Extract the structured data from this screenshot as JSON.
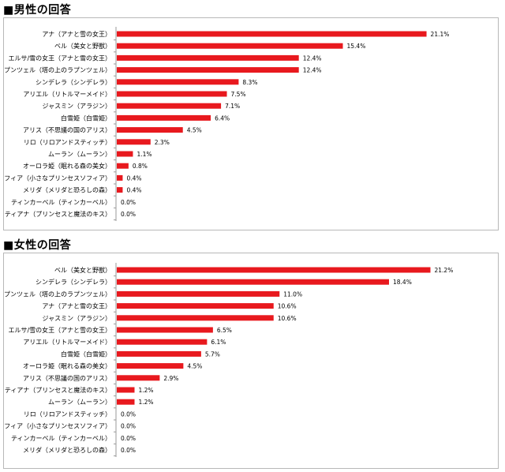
{
  "sections": [
    {
      "title": "■男性の回答",
      "chart_data": {
        "type": "bar",
        "orientation": "horizontal",
        "categories": [
          "アナ（アナと雪の女王）",
          "ベル（美女と野獣）",
          "エルサ/雪の女王（アナと雪の女王）",
          "ラプンツェル（塔の上のラプンツェル）",
          "シンデレラ（シンデレラ）",
          "アリエル（リトルマーメイド）",
          "ジャスミン（アラジン）",
          "白雪姫（白雪姫）",
          "アリス（不思議の国のアリス）",
          "リロ（リロアンドスティッチ）",
          "ムーラン（ムーラン）",
          "オーロラ姫（眠れる森の美女）",
          "ソフィア（小さなプリンセスソフィア）",
          "メリダ（メリダと恐ろしの森）",
          "ティンカーベル（ティンカーベル）",
          "ティアナ（プリンセスと魔法のキス）"
        ],
        "values": [
          21.1,
          15.4,
          12.4,
          12.4,
          8.3,
          7.5,
          7.1,
          6.4,
          4.5,
          2.3,
          1.1,
          0.8,
          0.4,
          0.4,
          0.0,
          0.0
        ],
        "labels": [
          "21.1%",
          "15.4%",
          "12.4%",
          "12.4%",
          "8.3%",
          "7.5%",
          "7.1%",
          "6.4%",
          "4.5%",
          "2.3%",
          "1.1%",
          "0.8%",
          "0.4%",
          "0.4%",
          "0.0%",
          "0.0%"
        ],
        "xlim": [
          0,
          21.5
        ],
        "bar_color": "#e8191e"
      }
    },
    {
      "title": "■女性の回答",
      "chart_data": {
        "type": "bar",
        "orientation": "horizontal",
        "categories": [
          "ベル（美女と野獣）",
          "シンデレラ（シンデレラ）",
          "ラプンツェル（塔の上のラプンツェル）",
          "アナ（アナと雪の女王）",
          "ジャスミン（アラジン）",
          "エルサ/雪の女王（アナと雪の女王）",
          "アリエル（リトルマーメイド）",
          "白雪姫（白雪姫）",
          "オーロラ姫（眠れる森の美女）",
          "アリス（不思議の国のアリス）",
          "ティアナ（プリンセスと魔法のキス）",
          "ムーラン（ムーラン）",
          "リロ（リロアンドスティッチ）",
          "ソフィア（小さなプリンセスソフィア）",
          "ティンカーベル（ティンカーベル）",
          "メリダ（メリダと恐ろしの森）"
        ],
        "values": [
          21.2,
          18.4,
          11.0,
          10.6,
          10.6,
          6.5,
          6.1,
          5.7,
          4.5,
          2.9,
          1.2,
          1.2,
          0.0,
          0.0,
          0.0,
          0.0
        ],
        "labels": [
          "21.2%",
          "18.4%",
          "11.0%",
          "10.6%",
          "10.6%",
          "6.5%",
          "6.1%",
          "5.7%",
          "4.5%",
          "2.9%",
          "1.2%",
          "1.2%",
          "0.0%",
          "0.0%",
          "0.0%",
          "0.0%"
        ],
        "xlim": [
          0,
          21.6
        ],
        "bar_color": "#e8191e"
      }
    }
  ]
}
